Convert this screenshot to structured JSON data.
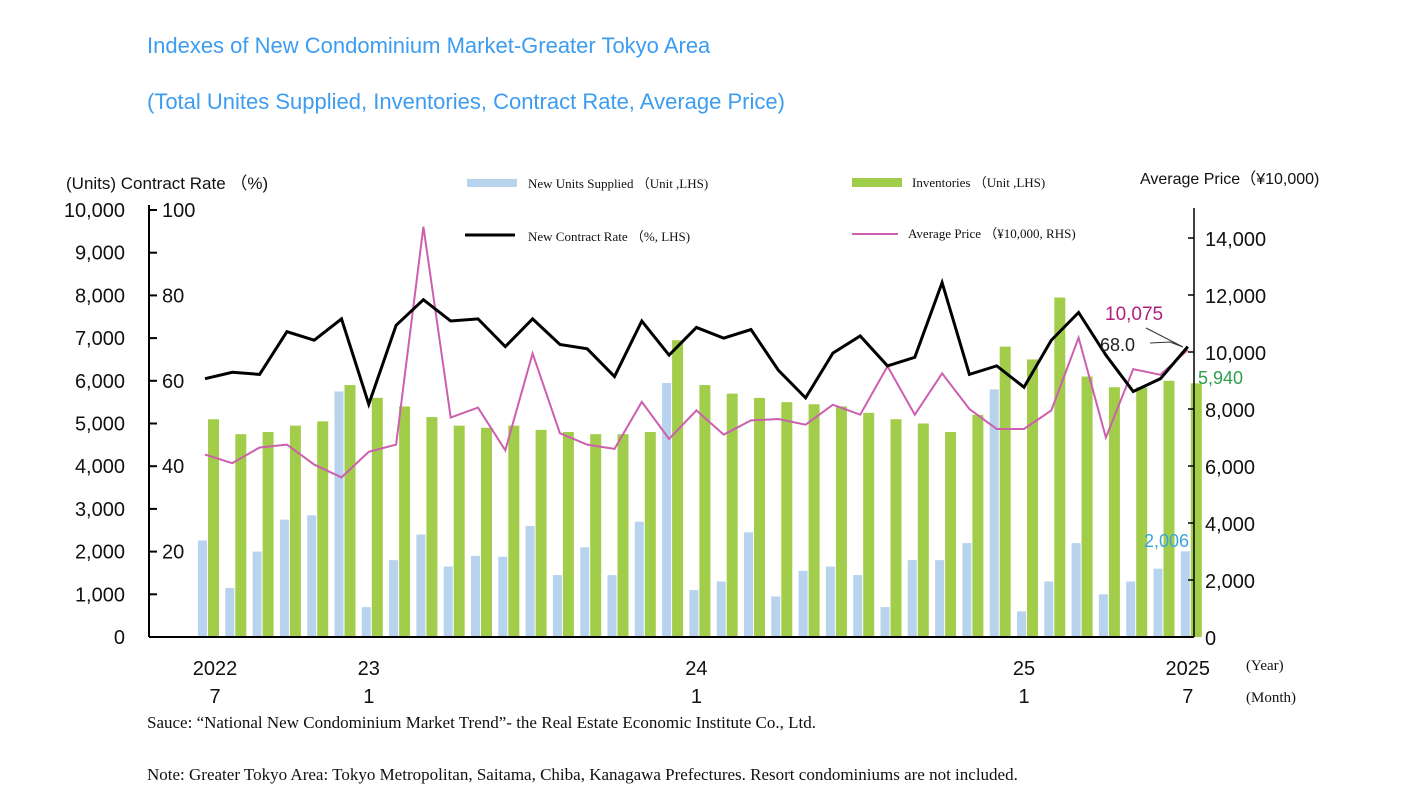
{
  "header": {
    "title_line1": "Indexes of New Condominium Market-Greater Tokyo Area",
    "title_line2": "(Total Unites Supplied, Inventories, Contract Rate, Average Price)"
  },
  "footer": {
    "source": "Sauce: “National New Condominium Market Trend”- the Real Estate Economic Institute Co., Ltd.",
    "note": "Note: Greater Tokyo Area: Tokyo Metropolitan, Saitama, Chiba, Kanagawa Prefectures. Resort condominiums are not included."
  },
  "chart_data": {
    "type": "bar",
    "title": "Indexes of New Condominium Market-Greater Tokyo Area",
    "left_axis_label": "(Units) Contract Rate （%)",
    "right_axis_label": "Average Price（¥10,000)",
    "x_unit_year": "(Year)",
    "x_unit_month": "(Month)",
    "units_ticks": [
      "10,000",
      "9,000",
      "8,000",
      "7,000",
      "6,000",
      "5,000",
      "4,000",
      "3,000",
      "2,000",
      "1,000",
      "0"
    ],
    "rate_ticks": [
      "100",
      "80",
      "60",
      "40",
      "20"
    ],
    "price_ticks": [
      "14,000",
      "12,000",
      "10,000",
      "8,000",
      "6,000",
      "4,000",
      "2,000",
      "0"
    ],
    "ylim_units": [
      0,
      10000
    ],
    "ylim_rate": [
      0,
      100
    ],
    "ylim_price": [
      0,
      14000
    ],
    "x_labels": [
      {
        "index": 0,
        "year": "2022",
        "month": "7"
      },
      {
        "index": 6,
        "year": "23",
        "month": "1"
      },
      {
        "index": 18,
        "year": "24",
        "month": "1"
      },
      {
        "index": 30,
        "year": "25",
        "month": "1"
      },
      {
        "index": 36,
        "year": "2025",
        "month": "7"
      }
    ],
    "series": [
      {
        "name": "New Units Supplied （Unit ,LHS)",
        "type": "bar",
        "axis": "left",
        "color": "#b7d3ee",
        "values": [
          2260,
          1150,
          2000,
          2750,
          2850,
          5750,
          700,
          1800,
          2400,
          1650,
          1900,
          1880,
          2600,
          1450,
          2100,
          1450,
          2700,
          5950,
          1100,
          1300,
          2450,
          950,
          1550,
          1650,
          1450,
          700,
          1800,
          1800,
          2200,
          5800,
          600,
          1300,
          2200,
          1000,
          1300,
          1600,
          2006
        ]
      },
      {
        "name": "Inventories （Unit ,LHS)",
        "type": "bar",
        "axis": "left",
        "color": "#a2cd4a",
        "values": [
          5100,
          4750,
          4800,
          4950,
          5050,
          5900,
          5600,
          5400,
          5150,
          4950,
          4900,
          4950,
          4850,
          4800,
          4750,
          4750,
          4800,
          6950,
          5900,
          5700,
          5600,
          5500,
          5450,
          5400,
          5250,
          5100,
          5000,
          4800,
          5200,
          6800,
          6500,
          7950,
          6100,
          5850,
          5850,
          6000,
          5940
        ]
      },
      {
        "name": "New Contract Rate （%, LHS)",
        "type": "line",
        "axis": "rate",
        "color": "#000000",
        "values": [
          60.5,
          62,
          61.5,
          71.5,
          69.5,
          74.5,
          54.5,
          73,
          79,
          74,
          74.5,
          68,
          74.5,
          68.5,
          67.5,
          61,
          74,
          66,
          72.5,
          70,
          72,
          62.5,
          56,
          66.5,
          70.5,
          63.5,
          65.5,
          83,
          61.5,
          63.5,
          58.5,
          69.5,
          76,
          66,
          57.5,
          60.5,
          68.0
        ]
      },
      {
        "name": "Average Price （¥10,000, RHS)",
        "type": "line",
        "axis": "right",
        "color": "#cc5fae",
        "values": [
          6400,
          6100,
          6650,
          6750,
          6050,
          5600,
          6500,
          6750,
          14400,
          7700,
          8050,
          6550,
          9950,
          7150,
          6750,
          6600,
          8250,
          6950,
          7950,
          7100,
          7600,
          7650,
          7450,
          8150,
          7800,
          9500,
          7800,
          9250,
          8000,
          7300,
          7300,
          7950,
          10500,
          7000,
          9400,
          9200,
          10075
        ]
      }
    ],
    "annotations": {
      "price_last": "10,075",
      "rate_last": "68.0",
      "inventory_last": "5,940",
      "supplied_last": "2,006"
    },
    "colors": {
      "price_label": "#b0207f",
      "inventory_label": "#2e9e4f",
      "supplied_label": "#3aa6d8"
    }
  }
}
